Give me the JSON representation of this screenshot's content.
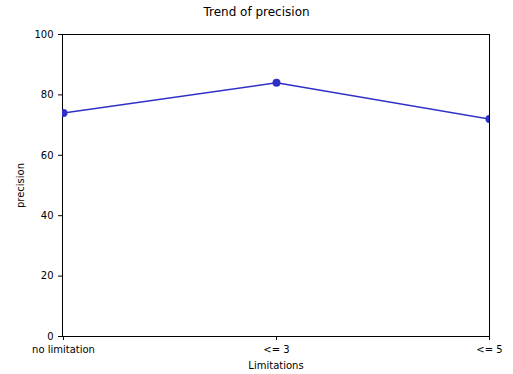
{
  "chart_data": {
    "type": "line",
    "title": "Trend of precision",
    "categories": [
      "no limitation",
      "<= 3",
      "<= 5"
    ],
    "values": [
      74,
      84,
      72
    ],
    "color": "#3030c8",
    "marker": "o",
    "x_label": "Limitations",
    "y_label": "precision",
    "ylim": [
      0,
      100
    ],
    "yticks": [
      0,
      20,
      40,
      60,
      80,
      100
    ],
    "grid": false
  }
}
